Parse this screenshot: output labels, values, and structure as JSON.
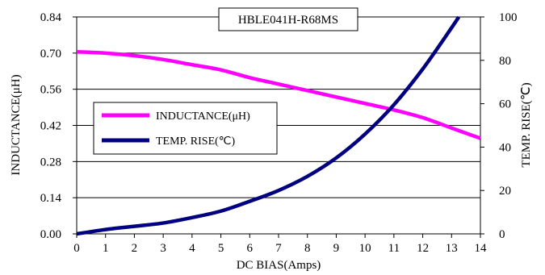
{
  "chart_data": {
    "type": "line",
    "title": "HBLE041H-R68MS",
    "xlabel": "DC BIAS(Amps)",
    "ylabel_left": "INDUCTANCE(μH)",
    "ylabel_right": "TEMP. RISE(℃)",
    "xlim": [
      0,
      14
    ],
    "ylim_left": [
      0,
      0.84
    ],
    "ylim_right": [
      0,
      100
    ],
    "x_ticks": [
      "0",
      "1",
      "2",
      "3",
      "4",
      "5",
      "6",
      "7",
      "8",
      "9",
      "10",
      "11",
      "12",
      "13",
      "14"
    ],
    "y_left_ticks": [
      "0.00",
      "0.14",
      "0.28",
      "0.42",
      "0.56",
      "0.70",
      "0.84"
    ],
    "y_right_ticks": [
      "0",
      "20",
      "40",
      "60",
      "80",
      "100"
    ],
    "grid": "horizontal",
    "legend_position": "center-left",
    "series": [
      {
        "name": "INDUCTANCE(μH)",
        "axis": "left",
        "color": "#ff00ff",
        "x": [
          0,
          1,
          2,
          3,
          4,
          5,
          6,
          7,
          8,
          9,
          10,
          11,
          12,
          13,
          14
        ],
        "y": [
          0.705,
          0.7,
          0.69,
          0.675,
          0.655,
          0.635,
          0.605,
          0.58,
          0.555,
          0.53,
          0.505,
          0.48,
          0.45,
          0.41,
          0.37
        ]
      },
      {
        "name": "TEMP. RISE(℃)",
        "axis": "right",
        "color": "#000080",
        "x": [
          0,
          1,
          2,
          3,
          4,
          5,
          6,
          7,
          8,
          9,
          10,
          11,
          12,
          13,
          13.25
        ],
        "y": [
          0,
          2,
          3.5,
          5,
          7.5,
          10.5,
          15,
          20,
          26.5,
          35,
          46,
          59.5,
          76,
          95,
          100
        ]
      }
    ]
  }
}
